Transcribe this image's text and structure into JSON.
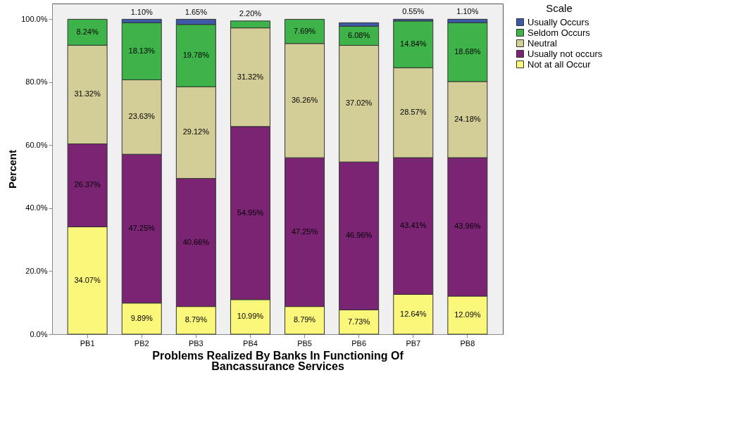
{
  "chart_data": {
    "type": "bar",
    "stacked": true,
    "xlabel": "Problems Realized By Banks In Functioning Of\nBancassurance Services",
    "ylabel": "Percent",
    "legend_title": "Scale",
    "legend": "top right",
    "grid": false,
    "categories": [
      "PB1",
      "PB2",
      "PB3",
      "PB4",
      "PB5",
      "PB6",
      "PB7",
      "PB8"
    ],
    "ylim": [
      0,
      105
    ],
    "yticks": [
      {
        "value": 0,
        "label": "0.0%"
      },
      {
        "value": 20,
        "label": "20.0%"
      },
      {
        "value": 40,
        "label": "40.0%"
      },
      {
        "value": 60,
        "label": "60.0%"
      },
      {
        "value": 80,
        "label": "80.0%"
      },
      {
        "value": 100,
        "label": "100.0%"
      }
    ],
    "series": [
      {
        "name": "Not at all Occur",
        "color": "#fbf77a",
        "values": [
          34.07,
          9.89,
          8.79,
          10.99,
          8.79,
          7.73,
          12.64,
          12.09
        ],
        "value_labels": [
          "34.07%",
          "9.89%",
          "8.79%",
          "10.99%",
          "8.79%",
          "7.73%",
          "12.64%",
          "12.09%"
        ]
      },
      {
        "name": "Usually not occurs",
        "color": "#7b2474",
        "values": [
          26.37,
          47.25,
          40.66,
          54.95,
          47.25,
          46.96,
          43.41,
          43.96
        ],
        "value_labels": [
          "26.37%",
          "47.25%",
          "40.66%",
          "54.95%",
          "47.25%",
          "46.96%",
          "43.41%",
          "43.96%"
        ]
      },
      {
        "name": "Neutral",
        "color": "#d3ce97",
        "values": [
          31.32,
          23.63,
          29.12,
          31.32,
          36.26,
          37.02,
          28.57,
          24.18
        ],
        "value_labels": [
          "31.32%",
          "23.63%",
          "29.12%",
          "31.32%",
          "36.26%",
          "37.02%",
          "28.57%",
          "24.18%"
        ]
      },
      {
        "name": "Seldom Occurs",
        "color": "#3db34a",
        "values": [
          8.24,
          18.13,
          19.78,
          2.2,
          7.69,
          6.08,
          14.84,
          18.68
        ],
        "value_labels": [
          "8.24%",
          "18.13%",
          "19.78%",
          "2.20%",
          "7.69%",
          "6.08%",
          "14.84%",
          "18.68%"
        ]
      },
      {
        "name": "Usually Occurs",
        "color": "#3c5aa8",
        "values": [
          null,
          1.1,
          1.65,
          null,
          null,
          1.1,
          0.55,
          1.1
        ],
        "value_labels": [
          null,
          "1.10%",
          "1.65%",
          null,
          null,
          null,
          "0.55%",
          "1.10%"
        ]
      }
    ]
  }
}
